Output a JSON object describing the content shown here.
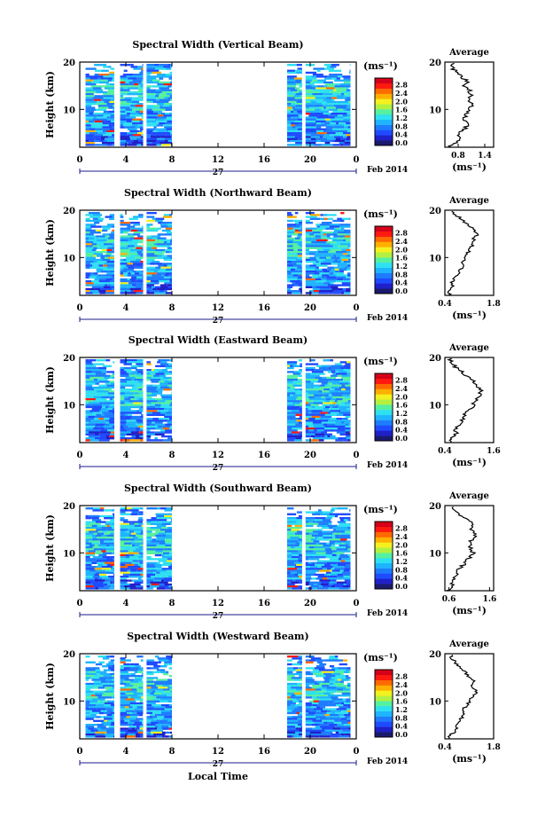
{
  "x_axis_label": "Local Time",
  "date_label": "Feb 2014",
  "day_label": "27",
  "unit_label": "(ms⁻¹)",
  "average_title": "Average",
  "y_axis_label": "Height (km)",
  "colorbar_ticks": [
    "2.8",
    "2.4",
    "2.0",
    "1.6",
    "1.2",
    "0.8",
    "0.4",
    "0.0"
  ],
  "colors": {
    "colorbar": [
      "#1a1a6e",
      "#2020c8",
      "#1f4bff",
      "#1e7cff",
      "#1eb4ff",
      "#2fe0f0",
      "#55f0a0",
      "#b4f040",
      "#f5f020",
      "#ffb000",
      "#ff6a00",
      "#ff1a10",
      "#d4001a"
    ],
    "background": "#ffffff"
  },
  "chart_data": [
    {
      "type": "heatmap",
      "title": "Spectral Width (Vertical Beam)",
      "xlabel": "Local Time",
      "ylabel": "Height (km)",
      "x_ticks": [
        "0",
        "4",
        "8",
        "12",
        "16",
        "20",
        "0"
      ],
      "xlim": [
        0,
        24
      ],
      "ylim": [
        2,
        20
      ],
      "y_ticks": [
        "20",
        "10"
      ],
      "data_segments_hours": [
        [
          0.5,
          3.0
        ],
        [
          3.5,
          5.5
        ],
        [
          5.8,
          8.0
        ],
        [
          18.0,
          19.3
        ],
        [
          19.6,
          23.5
        ]
      ],
      "colorbar_range": [
        0.0,
        3.0
      ],
      "profile": {
        "type": "line",
        "title": "Average",
        "xlabel": "(ms⁻¹)",
        "x_ticks": [
          "0.8",
          "1.4"
        ],
        "xlim": [
          0.5,
          1.6
        ],
        "y_ticks": [
          "20",
          "10"
        ],
        "ylim": [
          2,
          20
        ],
        "heights_km": [
          2,
          3,
          4,
          5,
          6,
          7,
          8,
          9,
          10,
          11,
          12,
          13,
          14,
          15,
          16,
          17,
          18,
          19,
          20
        ],
        "values": [
          0.6,
          0.75,
          0.8,
          0.85,
          0.95,
          1.0,
          0.95,
          1.0,
          1.05,
          1.1,
          1.0,
          1.1,
          1.05,
          0.95,
          1.0,
          0.85,
          0.75,
          0.65,
          0.7
        ]
      }
    },
    {
      "type": "heatmap",
      "title": "Spectral Width (Northward Beam)",
      "xlabel": "Local Time",
      "ylabel": "Height (km)",
      "x_ticks": [
        "0",
        "4",
        "8",
        "12",
        "16",
        "20",
        "0"
      ],
      "xlim": [
        0,
        24
      ],
      "ylim": [
        2,
        20
      ],
      "y_ticks": [
        "20",
        "10"
      ],
      "data_segments_hours": [
        [
          0.5,
          3.0
        ],
        [
          3.5,
          5.5
        ],
        [
          5.8,
          8.0
        ],
        [
          18.0,
          19.3
        ],
        [
          19.6,
          23.5
        ]
      ],
      "colorbar_range": [
        0.0,
        3.0
      ],
      "profile": {
        "type": "line",
        "title": "Average",
        "xlabel": "(ms⁻¹)",
        "x_ticks": [
          "0.4",
          "1.8"
        ],
        "xlim": [
          0.4,
          1.8
        ],
        "y_ticks": [
          "20",
          "10"
        ],
        "ylim": [
          2,
          20
        ],
        "heights_km": [
          2,
          3,
          4,
          5,
          6,
          7,
          8,
          9,
          10,
          11,
          12,
          13,
          14,
          15,
          16,
          17,
          18,
          19,
          20
        ],
        "values": [
          0.5,
          0.55,
          0.65,
          0.6,
          0.7,
          0.8,
          0.95,
          0.9,
          1.0,
          1.05,
          1.15,
          1.25,
          1.2,
          1.35,
          1.2,
          1.05,
          0.9,
          0.7,
          0.55
        ]
      }
    },
    {
      "type": "heatmap",
      "title": "Spectral Width (Eastward Beam)",
      "xlabel": "Local Time",
      "ylabel": "Height (km)",
      "x_ticks": [
        "0",
        "4",
        "8",
        "12",
        "16",
        "20",
        "0"
      ],
      "xlim": [
        0,
        24
      ],
      "ylim": [
        2,
        20
      ],
      "y_ticks": [
        "20",
        "10"
      ],
      "data_segments_hours": [
        [
          0.5,
          3.0
        ],
        [
          3.5,
          5.5
        ],
        [
          5.8,
          8.0
        ],
        [
          18.0,
          19.3
        ],
        [
          19.6,
          23.5
        ]
      ],
      "colorbar_range": [
        0.0,
        3.0
      ],
      "profile": {
        "type": "line",
        "title": "Average",
        "xlabel": "(ms⁻¹)",
        "x_ticks": [
          "0.4",
          "1.6"
        ],
        "xlim": [
          0.4,
          1.6
        ],
        "y_ticks": [
          "20",
          "10"
        ],
        "ylim": [
          2,
          20
        ],
        "heights_km": [
          2,
          3,
          4,
          5,
          6,
          7,
          8,
          9,
          10,
          11,
          12,
          13,
          14,
          15,
          16,
          17,
          18,
          19,
          20
        ],
        "values": [
          0.5,
          0.6,
          0.7,
          0.65,
          0.75,
          0.85,
          0.9,
          1.0,
          1.1,
          1.2,
          1.25,
          1.3,
          1.2,
          1.1,
          0.95,
          0.8,
          0.65,
          0.55,
          0.5
        ]
      }
    },
    {
      "type": "heatmap",
      "title": "Spectral Width (Southward Beam)",
      "xlabel": "Local Time",
      "ylabel": "Height (km)",
      "x_ticks": [
        "0",
        "4",
        "8",
        "12",
        "16",
        "20",
        "0"
      ],
      "xlim": [
        0,
        24
      ],
      "ylim": [
        2,
        20
      ],
      "y_ticks": [
        "20",
        "10"
      ],
      "data_segments_hours": [
        [
          0.5,
          3.0
        ],
        [
          3.5,
          5.5
        ],
        [
          5.8,
          8.0
        ],
        [
          18.0,
          19.3
        ],
        [
          19.6,
          23.5
        ]
      ],
      "colorbar_range": [
        0.0,
        3.0
      ],
      "profile": {
        "type": "line",
        "title": "Average",
        "xlabel": "(ms⁻¹)",
        "x_ticks": [
          "0.6",
          "1.6"
        ],
        "xlim": [
          0.5,
          1.7
        ],
        "y_ticks": [
          "20",
          "10"
        ],
        "ylim": [
          2,
          20
        ],
        "heights_km": [
          2,
          3,
          4,
          5,
          6,
          7,
          8,
          9,
          10,
          11,
          12,
          13,
          14,
          15,
          16,
          17,
          18,
          19,
          20
        ],
        "values": [
          0.6,
          0.65,
          0.7,
          0.75,
          0.8,
          0.9,
          1.0,
          1.1,
          1.2,
          1.15,
          1.1,
          1.2,
          1.25,
          1.15,
          1.2,
          1.05,
          0.9,
          0.75,
          0.65
        ]
      }
    },
    {
      "type": "heatmap",
      "title": "Spectral Width (Westward Beam)",
      "xlabel": "Local Time",
      "ylabel": "Height (km)",
      "x_ticks": [
        "0",
        "4",
        "8",
        "12",
        "16",
        "20",
        "0"
      ],
      "xlim": [
        0,
        24
      ],
      "ylim": [
        2,
        20
      ],
      "y_ticks": [
        "20",
        "10"
      ],
      "data_segments_hours": [
        [
          0.5,
          3.0
        ],
        [
          3.5,
          5.5
        ],
        [
          5.8,
          8.0
        ],
        [
          18.0,
          19.3
        ],
        [
          19.6,
          23.5
        ]
      ],
      "colorbar_range": [
        0.0,
        3.0
      ],
      "profile": {
        "type": "line",
        "title": "Average",
        "xlabel": "(ms⁻¹)",
        "x_ticks": [
          "0.4",
          "1.8"
        ],
        "xlim": [
          0.4,
          1.8
        ],
        "y_ticks": [
          "20",
          "10"
        ],
        "ylim": [
          2,
          20
        ],
        "heights_km": [
          2,
          3,
          4,
          5,
          6,
          7,
          8,
          9,
          10,
          11,
          12,
          13,
          14,
          15,
          16,
          17,
          18,
          19,
          20
        ],
        "values": [
          0.5,
          0.6,
          0.75,
          0.7,
          0.85,
          0.95,
          0.9,
          1.0,
          1.1,
          1.2,
          1.3,
          1.15,
          1.25,
          1.1,
          1.0,
          0.85,
          0.7,
          0.6,
          0.55
        ]
      }
    }
  ]
}
